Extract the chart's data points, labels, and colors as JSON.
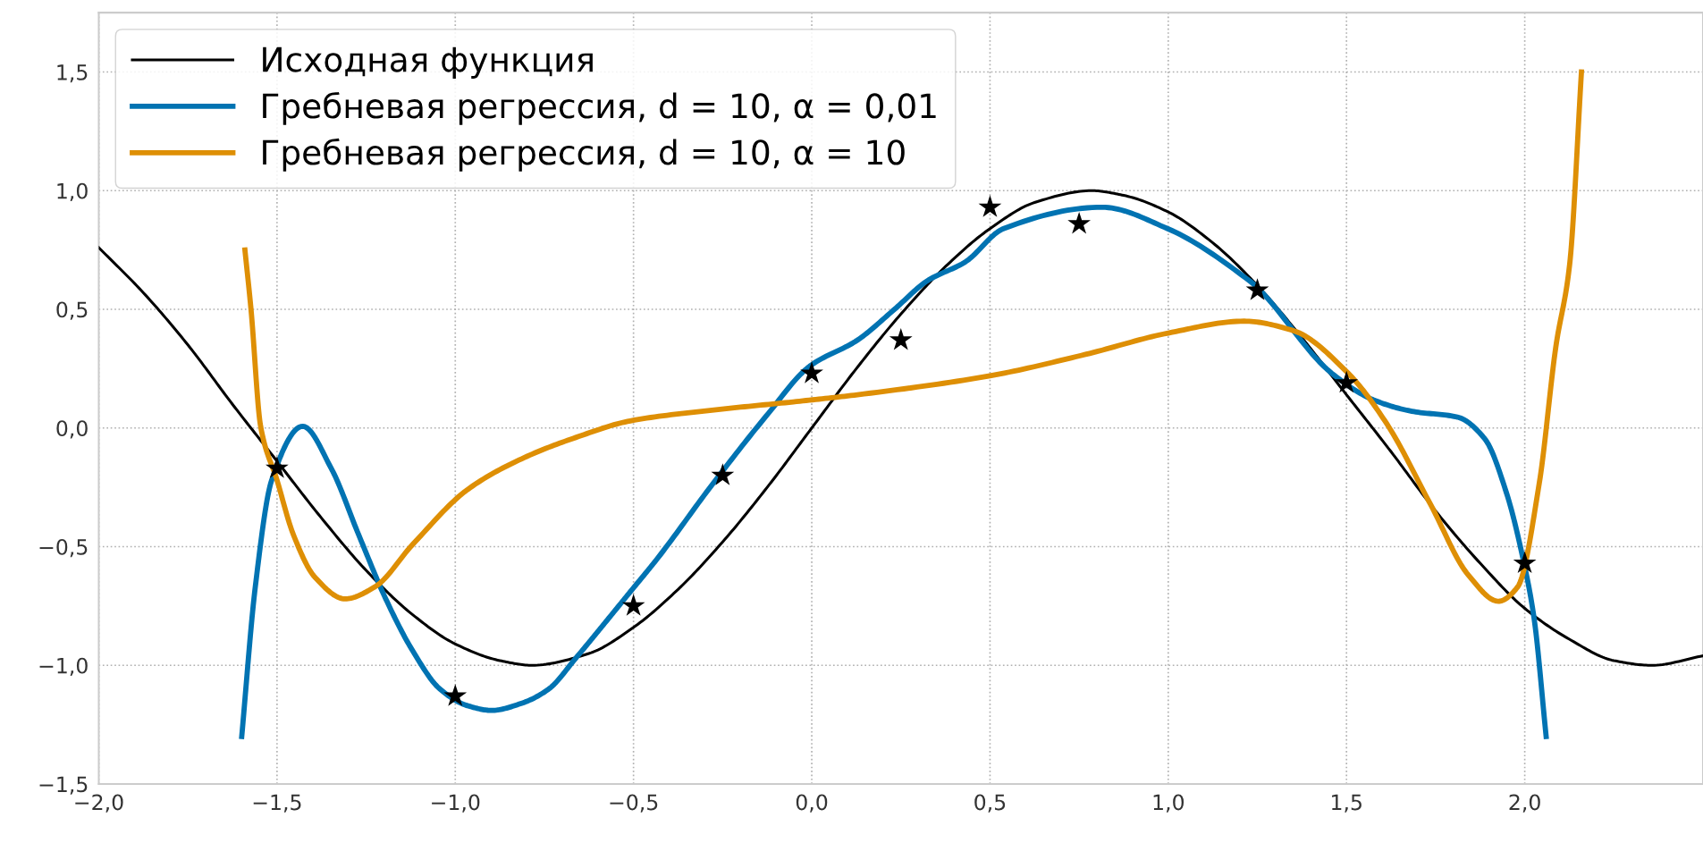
{
  "chart_data": {
    "type": "line",
    "xlim": [
      -2.0,
      2.5
    ],
    "ylim": [
      -1.5,
      1.75
    ],
    "xticks": [
      {
        "value": -2.0,
        "label": "−2,0"
      },
      {
        "value": -1.5,
        "label": "−1,5"
      },
      {
        "value": -1.0,
        "label": "−1,0"
      },
      {
        "value": -0.5,
        "label": "−0,5"
      },
      {
        "value": 0.0,
        "label": "0,0"
      },
      {
        "value": 0.5,
        "label": "0,5"
      },
      {
        "value": 1.0,
        "label": "1,0"
      },
      {
        "value": 1.5,
        "label": "1,5"
      },
      {
        "value": 2.0,
        "label": "2,0"
      }
    ],
    "yticks": [
      {
        "value": -1.5,
        "label": "−1,5"
      },
      {
        "value": -1.0,
        "label": "−1,0"
      },
      {
        "value": -0.5,
        "label": "−0,5"
      },
      {
        "value": 0.0,
        "label": "0,0"
      },
      {
        "value": 0.5,
        "label": "0,5"
      },
      {
        "value": 1.0,
        "label": "1,0"
      },
      {
        "value": 1.5,
        "label": "1,5"
      }
    ],
    "grid": true,
    "legend": "top left",
    "line_style": "solid",
    "series": [
      {
        "name": "Исходная функция",
        "color": "#000000",
        "x": [
          -2.0,
          -1.875,
          -1.75,
          -1.625,
          -1.5,
          -1.375,
          -1.25,
          -1.125,
          -1.0,
          -0.875,
          -0.785,
          -0.625,
          -0.5,
          -0.375,
          -0.25,
          -0.125,
          0.0,
          0.125,
          0.25,
          0.375,
          0.5,
          0.625,
          0.785,
          0.875,
          1.0,
          1.125,
          1.25,
          1.375,
          1.5,
          1.625,
          1.75,
          1.875,
          2.0,
          2.125,
          2.25,
          2.356,
          2.5
        ],
        "values": [
          0.76,
          0.57,
          0.35,
          0.1,
          -0.14,
          -0.38,
          -0.6,
          -0.78,
          -0.91,
          -0.98,
          -1.0,
          -0.95,
          -0.84,
          -0.68,
          -0.48,
          -0.25,
          0.0,
          0.25,
          0.48,
          0.68,
          0.84,
          0.95,
          1.0,
          0.98,
          0.91,
          0.78,
          0.6,
          0.38,
          0.14,
          -0.1,
          -0.35,
          -0.57,
          -0.76,
          -0.89,
          -0.98,
          -1.0,
          -0.96
        ]
      },
      {
        "name": "Гребневая регрессия, d = 10, α = 0,01",
        "color": "#0173b2",
        "x": [
          -1.599,
          -1.561,
          -1.515,
          -1.428,
          -1.348,
          -1.271,
          -1.195,
          -1.119,
          -1.043,
          -0.966,
          -0.898,
          -0.814,
          -0.738,
          -0.662,
          -0.585,
          -0.509,
          -0.433,
          -0.28,
          -0.128,
          -0.006,
          0.128,
          0.232,
          0.324,
          0.431,
          0.538,
          0.814,
          0.998,
          1.228,
          1.244,
          1.459,
          1.581,
          1.689,
          1.811,
          1.888,
          1.949,
          1.995,
          2.026,
          2.06
        ],
        "values": [
          -1.3,
          -0.67,
          -0.22,
          0.007,
          -0.17,
          -0.45,
          -0.72,
          -0.94,
          -1.1,
          -1.17,
          -1.19,
          -1.16,
          -1.1,
          -0.97,
          -0.83,
          -0.69,
          -0.55,
          -0.24,
          0.05,
          0.26,
          0.37,
          0.5,
          0.62,
          0.7,
          0.84,
          0.93,
          0.84,
          0.62,
          0.6,
          0.23,
          0.115,
          0.069,
          0.046,
          -0.046,
          -0.275,
          -0.55,
          -0.8,
          -1.3
        ]
      },
      {
        "name": "Гребневая регрессия, d = 10, α = 10",
        "color": "#de8f05",
        "x": [
          -1.59,
          -1.573,
          -1.546,
          -1.5,
          -1.454,
          -1.393,
          -1.309,
          -1.226,
          -1.119,
          -0.966,
          -0.814,
          -0.662,
          -0.509,
          -0.28,
          -0.052,
          0.128,
          0.5,
          0.768,
          1.0,
          1.213,
          1.351,
          1.505,
          1.612,
          1.735,
          1.842,
          1.926,
          1.98,
          2.041,
          2.087,
          2.126,
          2.159
        ],
        "values": [
          0.75,
          0.5,
          0.007,
          -0.22,
          -0.45,
          -0.63,
          -0.72,
          -0.67,
          -0.49,
          -0.26,
          -0.13,
          -0.04,
          0.03,
          0.075,
          0.11,
          0.14,
          0.22,
          0.31,
          0.4,
          0.45,
          0.41,
          0.23,
          0.02,
          -0.32,
          -0.62,
          -0.73,
          -0.67,
          -0.23,
          0.34,
          0.69,
          1.5
        ]
      },
      {
        "type": "scatter",
        "marker": "star",
        "color": "#000000",
        "x": [
          -1.5,
          -1.0,
          -0.5,
          -0.25,
          0.0,
          0.25,
          0.5,
          0.75,
          1.25,
          1.5,
          2.0
        ],
        "values": [
          -0.17,
          -1.13,
          -0.75,
          -0.2,
          0.23,
          0.37,
          0.93,
          0.86,
          0.58,
          0.19,
          -0.57
        ]
      }
    ]
  }
}
